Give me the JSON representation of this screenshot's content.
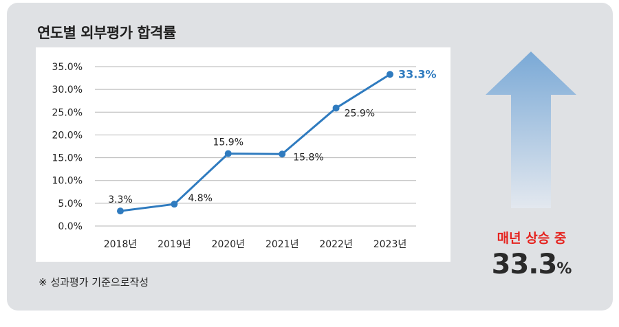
{
  "title": "연도별 외부평가 합격률",
  "note": "※ 성과평가 기준으로작성",
  "trend": {
    "label": "매년 상승 중",
    "value": "33.3",
    "unit": "%"
  },
  "colors": {
    "line": "#2f7bbf",
    "grid": "#b5b5b5",
    "highlight": "#2f7bbf",
    "label_red": "#e5231f",
    "arrow_top": "#7aa9d6",
    "arrow_bottom": "#e3e8ef"
  },
  "chart_data": {
    "type": "line",
    "categories": [
      "2018년",
      "2019년",
      "2020년",
      "2021년",
      "2022년",
      "2023년"
    ],
    "series": [
      {
        "values": [
          3.3,
          4.8,
          15.9,
          15.8,
          25.9,
          33.3
        ]
      }
    ],
    "data_labels": [
      "3.3%",
      "4.8%",
      "15.9%",
      "15.8%",
      "25.9%",
      "33.3%"
    ],
    "y_ticks": [
      "0.0%",
      "5.0%",
      "10.0%",
      "15.0%",
      "20.0%",
      "25.0%",
      "30.0%",
      "35.0%"
    ],
    "ylim": [
      0,
      35
    ],
    "grid": true,
    "legend": "none"
  }
}
